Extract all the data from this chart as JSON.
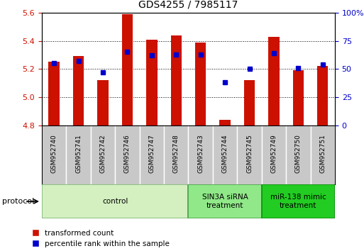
{
  "title": "GDS4255 / 7985117",
  "samples": [
    "GSM952740",
    "GSM952741",
    "GSM952742",
    "GSM952746",
    "GSM952747",
    "GSM952748",
    "GSM952743",
    "GSM952744",
    "GSM952745",
    "GSM952749",
    "GSM952750",
    "GSM952751"
  ],
  "red_values": [
    5.25,
    5.29,
    5.12,
    5.59,
    5.41,
    5.44,
    5.39,
    4.84,
    5.12,
    5.43,
    5.19,
    5.22
  ],
  "blue_values": [
    55,
    57,
    47,
    65,
    62,
    63,
    63,
    38,
    50,
    64,
    51,
    54
  ],
  "ylim_left": [
    4.8,
    5.6
  ],
  "ylim_right": [
    0,
    100
  ],
  "yticks_left": [
    4.8,
    5.0,
    5.2,
    5.4,
    5.6
  ],
  "yticks_right": [
    0,
    25,
    50,
    75,
    100
  ],
  "ytick_labels_right": [
    "0",
    "25",
    "50",
    "75",
    "100%"
  ],
  "groups": [
    {
      "label": "control",
      "start": 0,
      "end": 6,
      "color": "#d4f0c0",
      "border": "#80b878"
    },
    {
      "label": "SIN3A siRNA\ntreatment",
      "start": 6,
      "end": 9,
      "color": "#90e888",
      "border": "#50a050"
    },
    {
      "label": "miR-138 mimic\ntreatment",
      "start": 9,
      "end": 12,
      "color": "#22cc22",
      "border": "#109010"
    }
  ],
  "red_color": "#cc1100",
  "blue_color": "#0000cc",
  "bar_bottom": 4.8,
  "legend_red": "transformed count",
  "legend_blue": "percentile rank within the sample",
  "protocol_label": "protocol"
}
